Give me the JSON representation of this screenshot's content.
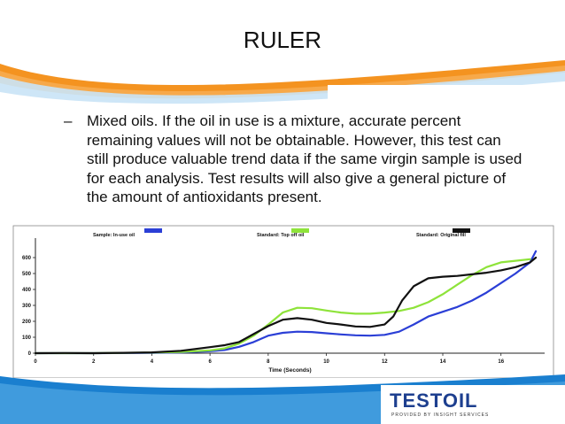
{
  "slide": {
    "title": "RULER",
    "bullet_marker": "–",
    "bullet_text": "Mixed oils. If the oil in use is a mixture, accurate percent remaining values will not be obtainable. However, this test can still produce valuable trend data if the same virgin sample is used for each analysis. Test results will also give a general picture of the amount of antioxidants present."
  },
  "logo": {
    "name": "TESTOIL",
    "tagline": "PROVIDED BY INSIGHT SERVICES"
  },
  "chart_data": {
    "type": "line",
    "xlabel": "Time (Seconds)",
    "ylabel": "",
    "xlim": [
      0,
      17.5
    ],
    "ylim": [
      0,
      700
    ],
    "xticks": [
      0,
      2,
      4,
      6,
      8,
      10,
      12,
      14,
      16
    ],
    "yticks": [
      0,
      100,
      200,
      300,
      400,
      500,
      600
    ],
    "grid": false,
    "legend_position": "top",
    "series": [
      {
        "name": "Sample: In-use oil",
        "color": "#2b3fd6",
        "points": [
          [
            0,
            0
          ],
          [
            2,
            0
          ],
          [
            4,
            2
          ],
          [
            5,
            5
          ],
          [
            6,
            12
          ],
          [
            6.5,
            20
          ],
          [
            7,
            40
          ],
          [
            7.5,
            70
          ],
          [
            8,
            110
          ],
          [
            8.5,
            128
          ],
          [
            9,
            135
          ],
          [
            9.5,
            133
          ],
          [
            10,
            125
          ],
          [
            10.5,
            118
          ],
          [
            11,
            112
          ],
          [
            11.5,
            110
          ],
          [
            12,
            115
          ],
          [
            12.5,
            135
          ],
          [
            13,
            180
          ],
          [
            13.5,
            230
          ],
          [
            14,
            260
          ],
          [
            14.5,
            290
          ],
          [
            15,
            330
          ],
          [
            15.5,
            380
          ],
          [
            16,
            440
          ],
          [
            16.5,
            500
          ],
          [
            17,
            570
          ],
          [
            17.2,
            640
          ]
        ]
      },
      {
        "name": "Standard: Top off oil",
        "color": "#8ee33a",
        "points": [
          [
            0,
            0
          ],
          [
            2,
            0
          ],
          [
            4,
            4
          ],
          [
            5,
            8
          ],
          [
            6,
            18
          ],
          [
            6.5,
            30
          ],
          [
            7,
            60
          ],
          [
            7.5,
            110
          ],
          [
            8,
            180
          ],
          [
            8.5,
            255
          ],
          [
            9,
            285
          ],
          [
            9.5,
            282
          ],
          [
            10,
            268
          ],
          [
            10.5,
            255
          ],
          [
            11,
            248
          ],
          [
            11.5,
            248
          ],
          [
            12,
            255
          ],
          [
            12.5,
            265
          ],
          [
            13,
            285
          ],
          [
            13.5,
            320
          ],
          [
            14,
            370
          ],
          [
            14.5,
            430
          ],
          [
            15,
            490
          ],
          [
            15.5,
            540
          ],
          [
            16,
            570
          ],
          [
            16.5,
            580
          ],
          [
            17,
            590
          ]
        ]
      },
      {
        "name": "Standard: Original fill",
        "color": "#111111",
        "points": [
          [
            0,
            0
          ],
          [
            1,
            1
          ],
          [
            2,
            0
          ],
          [
            3,
            2
          ],
          [
            4,
            5
          ],
          [
            5,
            15
          ],
          [
            6,
            38
          ],
          [
            6.5,
            50
          ],
          [
            7,
            70
          ],
          [
            7.5,
            120
          ],
          [
            8,
            170
          ],
          [
            8.5,
            210
          ],
          [
            9,
            220
          ],
          [
            9.5,
            210
          ],
          [
            10,
            190
          ],
          [
            10.5,
            180
          ],
          [
            11,
            168
          ],
          [
            11.5,
            165
          ],
          [
            12,
            180
          ],
          [
            12.3,
            230
          ],
          [
            12.6,
            330
          ],
          [
            13,
            420
          ],
          [
            13.5,
            470
          ],
          [
            14,
            480
          ],
          [
            14.5,
            485
          ],
          [
            15,
            495
          ],
          [
            15.5,
            505
          ],
          [
            16,
            520
          ],
          [
            16.5,
            540
          ],
          [
            17,
            570
          ],
          [
            17.2,
            600
          ]
        ]
      }
    ]
  }
}
